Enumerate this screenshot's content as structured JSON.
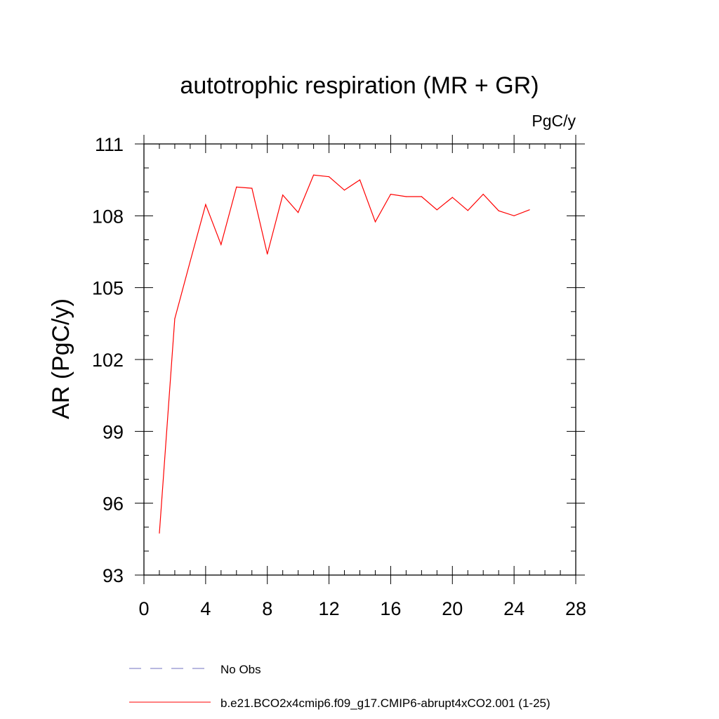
{
  "chart_data": {
    "type": "line",
    "title": "autotrophic respiration (MR + GR)",
    "units_label": "PgC/y",
    "ylabel": "AR  (PgC/y)",
    "xlabel": "",
    "xlim": [
      0,
      28
    ],
    "ylim": [
      93,
      111
    ],
    "x_ticks": [
      0,
      4,
      8,
      12,
      16,
      20,
      24,
      28
    ],
    "y_ticks": [
      93,
      96,
      99,
      102,
      105,
      108,
      111
    ],
    "x_tick_labels": [
      "0",
      "4",
      "8",
      "12",
      "16",
      "20",
      "24",
      "28"
    ],
    "y_tick_labels": [
      "93",
      "96",
      "99",
      "102",
      "105",
      "108",
      "111"
    ],
    "x_minor_step": 1,
    "y_minor_step": 1,
    "grid": false,
    "legend_position": "bottom",
    "series": [
      {
        "name": "b.e21.BCO2x4cmip6.f09_g17.CMIP6-abrupt4xCO2.001 (1-25)",
        "color": "#ff0000",
        "style": "solid",
        "x": [
          1,
          2,
          3,
          4,
          5,
          6,
          7,
          8,
          9,
          10,
          11,
          12,
          13,
          14,
          15,
          16,
          17,
          18,
          19,
          20,
          21,
          22,
          23,
          24,
          25
        ],
        "values": [
          94.75,
          103.7,
          106.1,
          108.47,
          106.8,
          109.2,
          109.15,
          106.4,
          108.87,
          108.14,
          109.7,
          109.63,
          109.07,
          109.5,
          107.75,
          108.9,
          108.8,
          108.8,
          108.25,
          108.77,
          108.22,
          108.9,
          108.21,
          108.0,
          108.25
        ]
      }
    ],
    "legend": [
      {
        "label": "No Obs",
        "color": "#7070c0",
        "style": "dashed"
      },
      {
        "label": "b.e21.BCO2x4cmip6.f09_g17.CMIP6-abrupt4xCO2.001 (1-25)",
        "color": "#ff0000",
        "style": "solid"
      }
    ]
  }
}
